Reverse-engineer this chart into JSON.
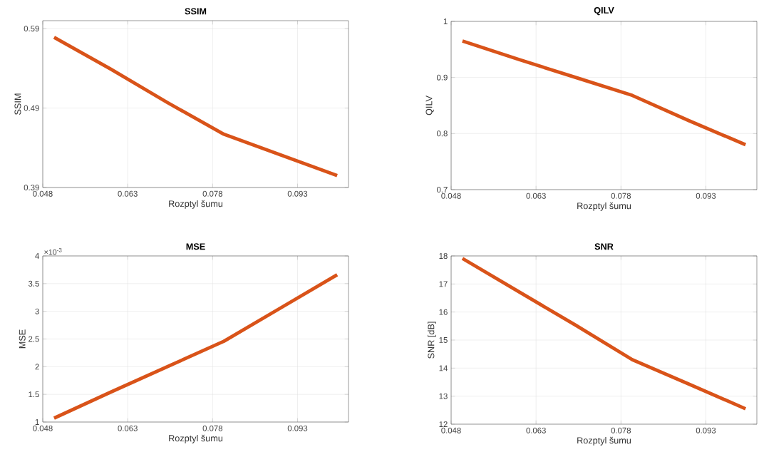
{
  "chart_data": [
    {
      "type": "line",
      "title": "SSIM",
      "xlabel": "Rozptyl šumu",
      "ylabel": "SSIM",
      "color": "#d95319",
      "grid": true,
      "x": [
        0.05,
        0.06,
        0.07,
        0.08,
        0.09,
        0.1
      ],
      "values": [
        0.579,
        0.539,
        0.497,
        0.457,
        0.431,
        0.405
      ],
      "xlim": [
        0.048,
        0.102
      ],
      "ylim": [
        0.39,
        0.6
      ],
      "xticks": [
        0.048,
        0.063,
        0.078,
        0.093
      ],
      "yticks": [
        0.39,
        0.49,
        0.59
      ]
    },
    {
      "type": "line",
      "title": "QILV",
      "xlabel": "Rozptyl šumu",
      "ylabel": "QILV",
      "color": "#d95319",
      "grid": true,
      "x": [
        0.05,
        0.06,
        0.07,
        0.08,
        0.09,
        0.1
      ],
      "values": [
        0.965,
        0.932,
        0.9,
        0.868,
        0.823,
        0.78
      ],
      "xlim": [
        0.048,
        0.102
      ],
      "ylim": [
        0.7,
        1
      ],
      "xticks": [
        0.048,
        0.063,
        0.078,
        0.093
      ],
      "yticks": [
        0.7,
        0.8,
        0.9,
        1
      ]
    },
    {
      "type": "line",
      "title": "MSE",
      "xlabel": "Rozptyl šumu",
      "ylabel": "MSE",
      "color": "#d95319",
      "grid": true,
      "annotations": [
        "×10$^{-3}$"
      ],
      "x": [
        0.05,
        0.06,
        0.07,
        0.08,
        0.09,
        0.1
      ],
      "values": [
        1.07,
        1.54,
        2.0,
        2.46,
        3.06,
        3.66
      ],
      "xlim": [
        0.048,
        0.102
      ],
      "ylim": [
        1,
        4
      ],
      "xticks": [
        0.048,
        0.063,
        0.078,
        0.093
      ],
      "yticks": [
        1,
        1.5,
        2,
        2.5,
        3,
        3.5,
        4
      ]
    },
    {
      "type": "line",
      "title": "SNR",
      "xlabel": "Rozptyl šumu",
      "ylabel": "SNR [dB]",
      "color": "#d95319",
      "grid": true,
      "x": [
        0.05,
        0.06,
        0.07,
        0.08,
        0.09,
        0.1
      ],
      "values": [
        17.91,
        16.72,
        15.53,
        14.3,
        13.43,
        12.55
      ],
      "xlim": [
        0.048,
        0.102
      ],
      "ylim": [
        12,
        18
      ],
      "xticks": [
        0.048,
        0.063,
        0.078,
        0.093
      ],
      "yticks": [
        12,
        13,
        14,
        15,
        16,
        17,
        18
      ]
    }
  ]
}
